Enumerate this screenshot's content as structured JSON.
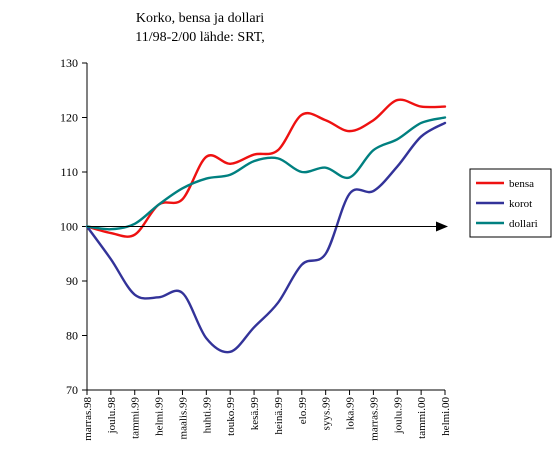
{
  "chart_data": {
    "type": "line",
    "title_lines": [
      "Korko, bensa ja dollari",
      "11/98-2/00 lähde: SRT,"
    ],
    "categories": [
      "marras.98",
      "joulu.98",
      "tammi.99",
      "helmi.99",
      "maalis.99",
      "huhti.99",
      "touko.99",
      "kesä.99",
      "heinä.99",
      "elo.99",
      "syys.99",
      "loka.99",
      "marras.99",
      "joulu.99",
      "tammi.00",
      "helmi.00"
    ],
    "ylim": [
      70,
      130
    ],
    "yticks": [
      70,
      80,
      90,
      100,
      110,
      120,
      130
    ],
    "grid": false,
    "legend_position": "right",
    "reference_arrow_value": 100,
    "series": [
      {
        "name": "bensa",
        "color": "#ee1111",
        "values": [
          100.0,
          98.8,
          98.5,
          104.0,
          105.0,
          112.8,
          111.5,
          113.2,
          114.0,
          120.5,
          119.5,
          117.5,
          119.5,
          123.2,
          122.0,
          122.0
        ]
      },
      {
        "name": "korot",
        "color": "#333399",
        "values": [
          100.0,
          94.0,
          87.5,
          87.0,
          87.8,
          79.5,
          77.0,
          81.5,
          86.0,
          93.0,
          95.0,
          106.0,
          106.5,
          111.0,
          116.5,
          119.0
        ]
      },
      {
        "name": "dollari",
        "color": "#008080",
        "values": [
          100.0,
          99.5,
          100.5,
          104.0,
          107.0,
          108.8,
          109.5,
          112.0,
          112.5,
          110.0,
          110.8,
          109.0,
          114.0,
          116.0,
          119.0,
          120.0
        ]
      }
    ]
  }
}
